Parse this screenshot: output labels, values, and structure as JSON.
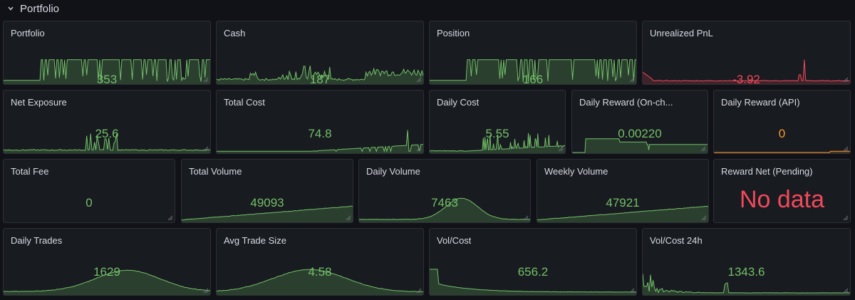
{
  "row": {
    "title": "Portfolio",
    "icon": "chevron-down-icon"
  },
  "colors": {
    "green": "#73bf69",
    "red": "#f2495c",
    "orange": "#ff9830",
    "fill_green": "rgba(115,191,105,0.22)",
    "fill_red": "rgba(242,73,92,0.18)"
  },
  "panels": [
    {
      "name": "portfolio",
      "title": "Portfolio",
      "value": "353",
      "color": "green"
    },
    {
      "name": "cash",
      "title": "Cash",
      "value": "187",
      "color": "green"
    },
    {
      "name": "position",
      "title": "Position",
      "value": "166",
      "color": "green"
    },
    {
      "name": "unrealized-pnl",
      "title": "Unrealized PnL",
      "value": "-3.92",
      "color": "red"
    },
    {
      "name": "net-exposure",
      "title": "Net Exposure",
      "value": "25.6",
      "color": "green"
    },
    {
      "name": "total-cost",
      "title": "Total Cost",
      "value": "74.8",
      "color": "green"
    },
    {
      "name": "daily-cost",
      "title": "Daily Cost",
      "value": "5.55",
      "color": "green"
    },
    {
      "name": "daily-reward-onchain",
      "title": "Daily Reward (On-ch...",
      "value": "0.00220",
      "color": "green"
    },
    {
      "name": "daily-reward-api",
      "title": "Daily Reward (API)",
      "value": "0",
      "color": "orange"
    },
    {
      "name": "total-fee",
      "title": "Total Fee",
      "value": "0",
      "color": "green"
    },
    {
      "name": "total-volume",
      "title": "Total Volume",
      "value": "49093",
      "color": "green"
    },
    {
      "name": "daily-volume",
      "title": "Daily Volume",
      "value": "7463",
      "color": "green"
    },
    {
      "name": "weekly-volume",
      "title": "Weekly Volume",
      "value": "47921",
      "color": "green"
    },
    {
      "name": "reward-net-pending",
      "title": "Reward Net (Pending)",
      "value": "No data",
      "color": "red"
    },
    {
      "name": "daily-trades",
      "title": "Daily Trades",
      "value": "1629",
      "color": "green"
    },
    {
      "name": "avg-trade-size",
      "title": "Avg Trade Size",
      "value": "4.58",
      "color": "green"
    },
    {
      "name": "vol-cost",
      "title": "Vol/Cost",
      "value": "656.2",
      "color": "green"
    },
    {
      "name": "vol-cost-24h",
      "title": "Vol/Cost 24h",
      "value": "1343.6",
      "color": "green"
    }
  ]
}
